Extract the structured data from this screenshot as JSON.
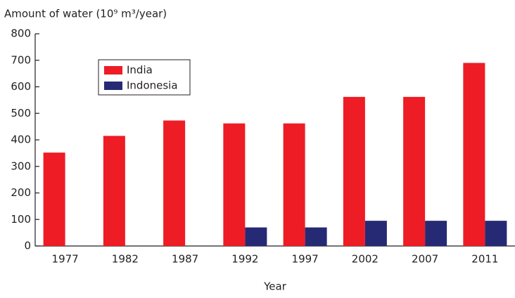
{
  "chart_data": {
    "type": "bar",
    "y_label": "Amount of water (10⁹ m³/year)",
    "x_label": "Year",
    "categories": [
      "1977",
      "1982",
      "1987",
      "1992",
      "1997",
      "2002",
      "2007",
      "2011"
    ],
    "series": [
      {
        "name": "India",
        "color": "#ee1c24",
        "values": [
          352,
          415,
          473,
          462,
          462,
          562,
          562,
          690
        ]
      },
      {
        "name": "Indonesia",
        "color": "#262a74",
        "values": [
          null,
          null,
          null,
          70,
          70,
          95,
          95,
          95
        ]
      }
    ],
    "ylim": [
      0,
      800
    ],
    "yticks": [
      0,
      100,
      200,
      300,
      400,
      500,
      600,
      700,
      800
    ],
    "legend": "upper left"
  }
}
